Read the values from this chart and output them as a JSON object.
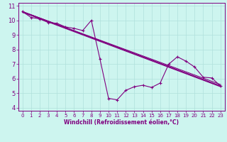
{
  "bg_color": "#cdf5ef",
  "line_color": "#800080",
  "grid_color": "#b0e0dc",
  "xlabel": "Windchill (Refroidissement éolien,°C)",
  "xlabel_color": "#800080",
  "tick_color": "#800080",
  "spine_color": "#800080",
  "xlim": [
    -0.5,
    23.5
  ],
  "ylim": [
    3.8,
    11.2
  ],
  "yticks": [
    4,
    5,
    6,
    7,
    8,
    9,
    10,
    11
  ],
  "xticks": [
    0,
    1,
    2,
    3,
    4,
    5,
    6,
    7,
    8,
    9,
    10,
    11,
    12,
    13,
    14,
    15,
    16,
    17,
    18,
    19,
    20,
    21,
    22,
    23
  ],
  "series1_x": [
    0,
    1,
    2,
    3,
    4,
    5,
    6,
    7,
    8,
    9,
    10,
    11,
    12,
    13,
    14,
    15,
    16,
    17,
    18,
    19,
    20,
    21,
    22,
    23
  ],
  "series1_y": [
    10.6,
    10.2,
    10.1,
    9.85,
    9.8,
    9.55,
    9.45,
    9.3,
    10.0,
    7.35,
    4.65,
    4.55,
    5.2,
    5.45,
    5.55,
    5.4,
    5.7,
    7.0,
    7.5,
    7.2,
    6.8,
    6.1,
    6.05,
    5.5
  ],
  "line1_x": [
    0,
    23
  ],
  "line1_y": [
    10.6,
    5.5
  ],
  "line2_x": [
    0,
    23
  ],
  "line2_y": [
    10.6,
    5.5
  ],
  "line3_x": [
    0,
    23
  ],
  "line3_y": [
    10.6,
    5.6
  ],
  "line4_x": [
    0,
    23
  ],
  "line4_y": [
    10.55,
    5.45
  ]
}
